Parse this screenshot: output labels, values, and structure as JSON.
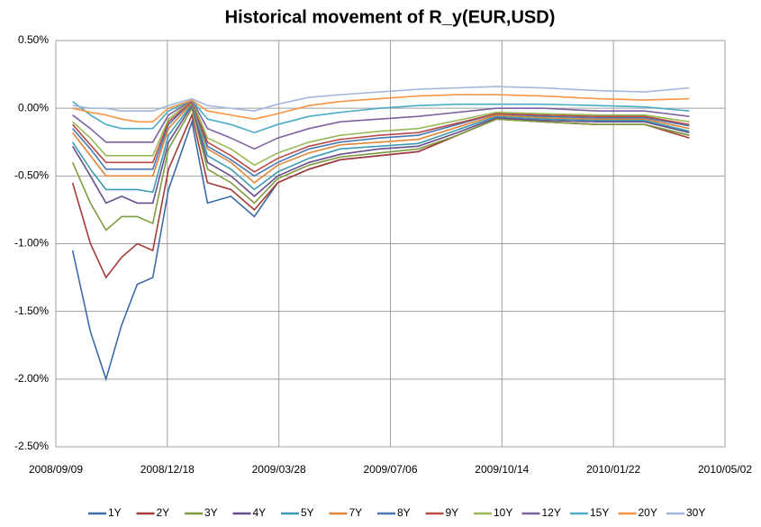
{
  "chart_data": {
    "type": "line",
    "title": "Historical movement of R_y(EUR,USD)",
    "x": [
      "2008/09/24",
      "2008/10/10",
      "2008/10/24",
      "2008/11/07",
      "2008/11/21",
      "2008/12/05",
      "2008/12/19",
      "2009/01/09",
      "2009/01/23",
      "2009/02/13",
      "2009/03/06",
      "2009/03/27",
      "2009/04/24",
      "2009/05/22",
      "2009/06/26",
      "2009/07/31",
      "2009/09/04",
      "2009/10/09",
      "2009/11/20",
      "2010/01/08",
      "2010/02/19",
      "2010/03/31"
    ],
    "xlim": [
      "2008/09/09",
      "2010/05/02"
    ],
    "xticks": [
      "2008/09/09",
      "2008/12/18",
      "2009/03/28",
      "2009/07/06",
      "2009/10/14",
      "2010/01/22",
      "2010/05/02"
    ],
    "ylim": [
      -2.5,
      0.5
    ],
    "yticks": [
      {
        "value": -2.5,
        "label": "-2.50%"
      },
      {
        "value": -2,
        "label": "-2.00%"
      },
      {
        "value": -1.5,
        "label": "-1.50%"
      },
      {
        "value": -1,
        "label": "-1.00%"
      },
      {
        "value": -0.5,
        "label": "-0.50%"
      },
      {
        "value": 0,
        "label": "0.00%"
      },
      {
        "value": 0.5,
        "label": "0.50%"
      }
    ],
    "grid": true,
    "legend": "bottom",
    "series": [
      {
        "name": "1Y",
        "color": "#3d6aa8",
        "values": [
          -1.05,
          -1.65,
          -2.0,
          -1.6,
          -1.3,
          -1.25,
          -0.6,
          -0.1,
          -0.7,
          -0.65,
          -0.8,
          -0.55,
          -0.45,
          -0.38,
          -0.35,
          -0.32,
          -0.2,
          -0.08,
          -0.1,
          -0.12,
          -0.12,
          -0.2
        ]
      },
      {
        "name": "2Y",
        "color": "#a53a38",
        "values": [
          -0.55,
          -1.0,
          -1.25,
          -1.1,
          -1.0,
          -1.05,
          -0.45,
          -0.05,
          -0.55,
          -0.6,
          -0.75,
          -0.55,
          -0.45,
          -0.38,
          -0.35,
          -0.32,
          -0.2,
          -0.08,
          -0.1,
          -0.12,
          -0.12,
          -0.22
        ]
      },
      {
        "name": "3Y",
        "color": "#7f9c3e",
        "values": [
          -0.4,
          -0.7,
          -0.9,
          -0.8,
          -0.8,
          -0.85,
          -0.3,
          0.0,
          -0.45,
          -0.55,
          -0.7,
          -0.52,
          -0.42,
          -0.36,
          -0.33,
          -0.3,
          -0.2,
          -0.08,
          -0.1,
          -0.12,
          -0.12,
          -0.2
        ]
      },
      {
        "name": "4Y",
        "color": "#674e8c",
        "values": [
          -0.28,
          -0.5,
          -0.7,
          -0.65,
          -0.7,
          -0.7,
          -0.25,
          0.02,
          -0.4,
          -0.5,
          -0.65,
          -0.5,
          -0.4,
          -0.34,
          -0.3,
          -0.28,
          -0.18,
          -0.07,
          -0.09,
          -0.1,
          -0.1,
          -0.18
        ]
      },
      {
        "name": "5Y",
        "color": "#3c9bb2",
        "values": [
          -0.25,
          -0.45,
          -0.6,
          -0.6,
          -0.6,
          -0.62,
          -0.2,
          0.03,
          -0.35,
          -0.45,
          -0.6,
          -0.47,
          -0.37,
          -0.3,
          -0.28,
          -0.26,
          -0.16,
          -0.06,
          -0.08,
          -0.09,
          -0.09,
          -0.17
        ]
      },
      {
        "name": "7Y",
        "color": "#e0873a",
        "values": [
          -0.18,
          -0.35,
          -0.5,
          -0.5,
          -0.5,
          -0.5,
          -0.15,
          0.04,
          -0.3,
          -0.4,
          -0.55,
          -0.42,
          -0.33,
          -0.27,
          -0.25,
          -0.23,
          -0.14,
          -0.05,
          -0.07,
          -0.08,
          -0.08,
          -0.15
        ]
      },
      {
        "name": "8Y",
        "color": "#4a78b5",
        "values": [
          -0.15,
          -0.3,
          -0.45,
          -0.45,
          -0.45,
          -0.45,
          -0.12,
          0.05,
          -0.28,
          -0.38,
          -0.5,
          -0.4,
          -0.3,
          -0.25,
          -0.22,
          -0.2,
          -0.12,
          -0.04,
          -0.06,
          -0.07,
          -0.07,
          -0.13
        ]
      },
      {
        "name": "9Y",
        "color": "#b84a48",
        "values": [
          -0.12,
          -0.27,
          -0.4,
          -0.4,
          -0.4,
          -0.4,
          -0.1,
          0.05,
          -0.25,
          -0.35,
          -0.47,
          -0.37,
          -0.28,
          -0.23,
          -0.2,
          -0.18,
          -0.11,
          -0.04,
          -0.05,
          -0.06,
          -0.06,
          -0.12
        ]
      },
      {
        "name": "10Y",
        "color": "#98b955",
        "values": [
          -0.1,
          -0.22,
          -0.35,
          -0.35,
          -0.35,
          -0.35,
          -0.08,
          0.06,
          -0.22,
          -0.3,
          -0.42,
          -0.33,
          -0.25,
          -0.2,
          -0.17,
          -0.15,
          -0.09,
          -0.03,
          -0.04,
          -0.05,
          -0.05,
          -0.1
        ]
      },
      {
        "name": "12Y",
        "color": "#7e62a0",
        "values": [
          -0.05,
          -0.15,
          -0.25,
          -0.25,
          -0.25,
          -0.25,
          -0.05,
          0.06,
          -0.15,
          -0.22,
          -0.3,
          -0.22,
          -0.15,
          -0.1,
          -0.08,
          -0.06,
          -0.03,
          0.0,
          0.0,
          -0.02,
          -0.02,
          -0.06
        ]
      },
      {
        "name": "15Y",
        "color": "#4bacc6",
        "values": [
          0.05,
          -0.05,
          -0.12,
          -0.15,
          -0.15,
          -0.15,
          -0.02,
          0.06,
          -0.08,
          -0.12,
          -0.18,
          -0.12,
          -0.06,
          -0.03,
          0.0,
          0.02,
          0.03,
          0.03,
          0.03,
          0.02,
          0.01,
          -0.02
        ]
      },
      {
        "name": "20Y",
        "color": "#f79646",
        "values": [
          0.0,
          -0.03,
          -0.05,
          -0.08,
          -0.1,
          -0.1,
          0.0,
          0.06,
          -0.02,
          -0.05,
          -0.08,
          -0.04,
          0.02,
          0.05,
          0.07,
          0.09,
          0.1,
          0.1,
          0.09,
          0.07,
          0.06,
          0.07
        ]
      },
      {
        "name": "30Y",
        "color": "#a3b9dc",
        "values": [
          0.02,
          0.0,
          0.0,
          -0.02,
          -0.02,
          -0.02,
          0.02,
          0.07,
          0.02,
          0.0,
          -0.02,
          0.03,
          0.08,
          0.1,
          0.12,
          0.14,
          0.15,
          0.16,
          0.15,
          0.13,
          0.12,
          0.15
        ]
      }
    ]
  }
}
